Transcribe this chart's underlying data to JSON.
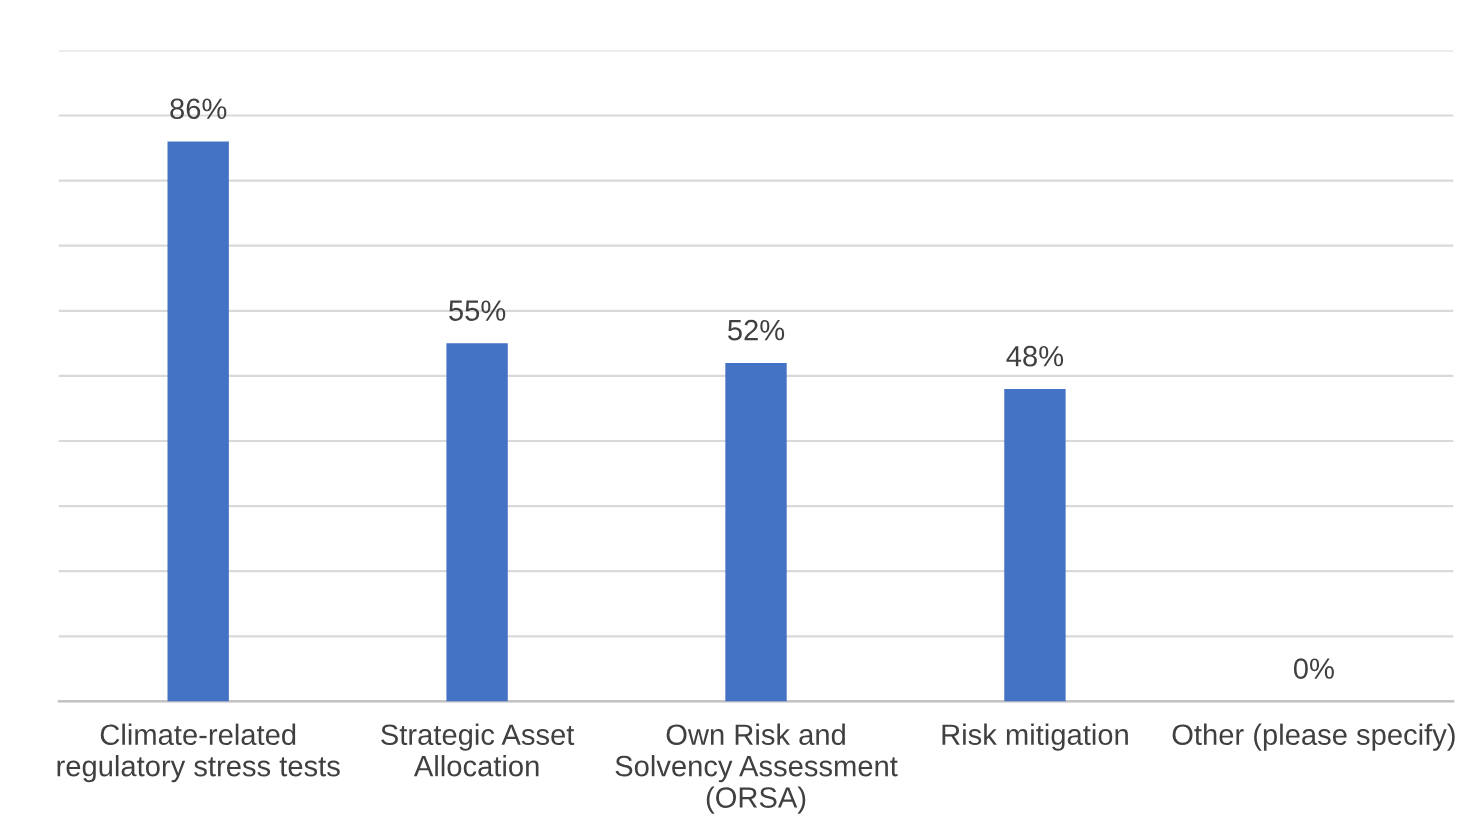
{
  "chart_data": {
    "type": "bar",
    "categories": [
      "Climate-related\nregulatory stress tests",
      "Strategic Asset\nAllocation",
      "Own Risk and\nSolvency Assessment\n(ORSA)",
      "Risk mitigation",
      "Other (please specify)"
    ],
    "values": [
      86,
      55,
      52,
      48,
      0
    ],
    "value_labels": [
      "86%",
      "55%",
      "52%",
      "48%",
      "0%"
    ],
    "color": "#4472c4",
    "ylim": [
      0,
      100
    ],
    "yticks": [
      {
        "value": 0,
        "label": null
      },
      {
        "value": 10,
        "label": null
      },
      {
        "value": 20,
        "label": null
      },
      {
        "value": 30,
        "label": null
      },
      {
        "value": 40,
        "label": null
      },
      {
        "value": 50,
        "label": null
      },
      {
        "value": 60,
        "label": null
      },
      {
        "value": 70,
        "label": null
      },
      {
        "value": 80,
        "label": null
      },
      {
        "value": 90,
        "label": null
      },
      {
        "value": 100,
        "label": null
      }
    ],
    "grid": "y",
    "tick_labels": "x"
  }
}
